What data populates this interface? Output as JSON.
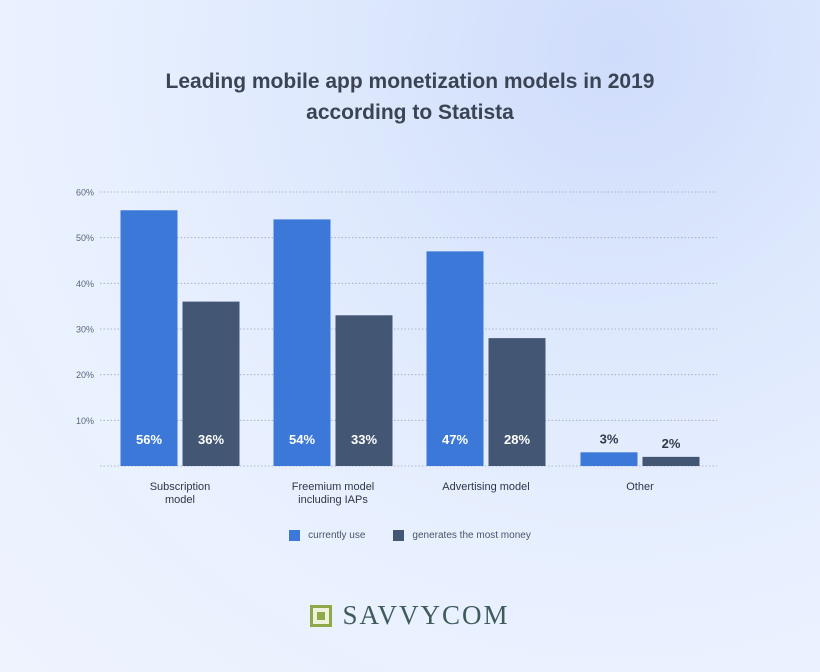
{
  "title_lines": [
    "Leading mobile app monetization models in 2019",
    "according to Statista"
  ],
  "colors": {
    "currently_use": "#3b78d8",
    "generates_money": "#435673",
    "grid": "#9aa7bd",
    "axis_text": "#5b6678"
  },
  "legend": [
    {
      "label": "currently use",
      "color": "#3b78d8"
    },
    {
      "label": "generates the most money",
      "color": "#435673"
    }
  ],
  "brand": {
    "name": "SAVVYCOM",
    "icon": "savvycom-square-logo-icon"
  },
  "chart_data": {
    "type": "bar",
    "title": "Leading mobile app monetization models in 2019 according to Statista",
    "categories": [
      [
        "Subscription",
        "model"
      ],
      [
        "Freemium model",
        "including IAPs"
      ],
      [
        "Advertising model"
      ],
      [
        "Other"
      ]
    ],
    "series": [
      {
        "name": "currently use",
        "values": [
          56,
          54,
          47,
          3
        ],
        "labels": [
          "56%",
          "54%",
          "47%",
          "3%"
        ]
      },
      {
        "name": "generates the most money",
        "values": [
          36,
          33,
          28,
          2
        ],
        "labels": [
          "36%",
          "33%",
          "28%",
          "2%"
        ]
      }
    ],
    "yticks": [
      "10%",
      "20%",
      "30%",
      "40%",
      "50%",
      "60%"
    ],
    "ylim": [
      0,
      60
    ],
    "grid": true,
    "legend_position": "bottom"
  }
}
